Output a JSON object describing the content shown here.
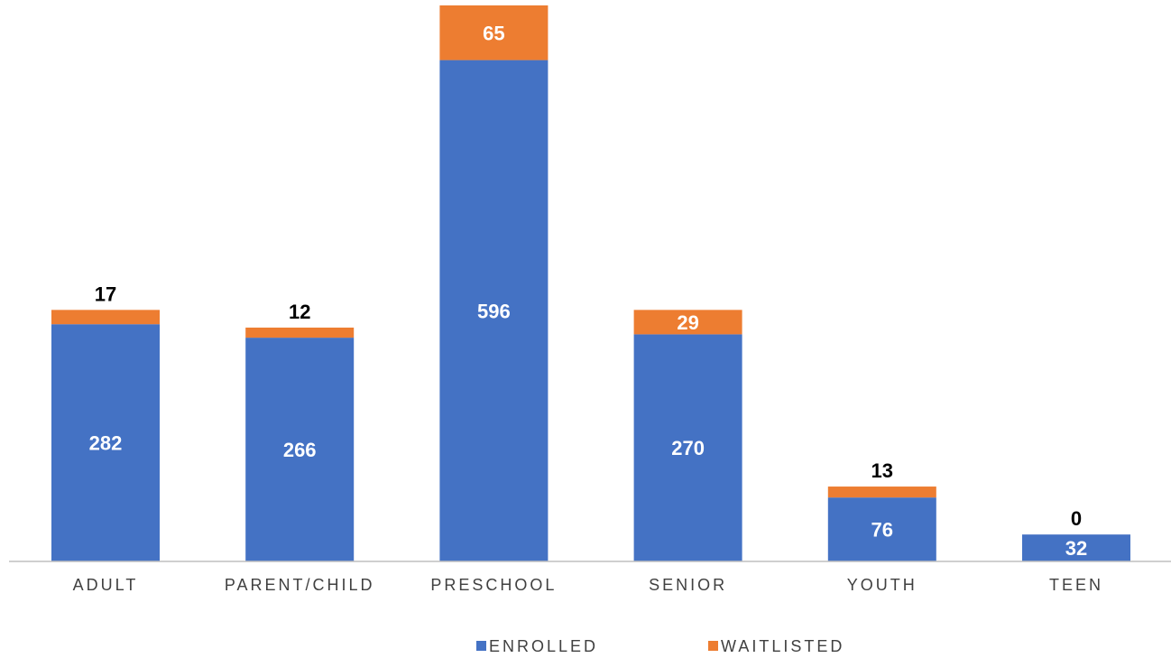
{
  "chart_data": {
    "type": "bar",
    "stacked": true,
    "title": "",
    "xlabel": "",
    "ylabel": "",
    "categories": [
      "ADULT",
      "PARENT/CHILD",
      "PRESCHOOL",
      "SENIOR",
      "YOUTH",
      "TEEN"
    ],
    "series": [
      {
        "name": "ENROLLED",
        "color": "#4472C4",
        "values": [
          282,
          266,
          596,
          270,
          76,
          32
        ]
      },
      {
        "name": "WAITLISTED",
        "color": "#ED7D31",
        "values": [
          17,
          12,
          65,
          29,
          13,
          0
        ]
      }
    ],
    "ylim": [
      0,
      661
    ],
    "grid": false,
    "legend": "bottom",
    "data_labels": {
      "enrolled": "inside",
      "waitlisted": "inside when large, above when small"
    }
  }
}
